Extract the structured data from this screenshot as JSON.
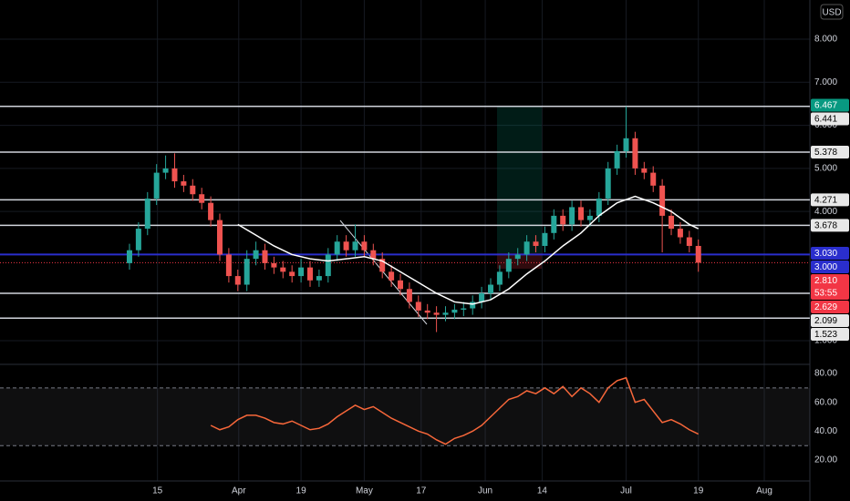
{
  "currency": "USD",
  "chart_data": [
    {
      "type": "candlestick",
      "xlim": [
        -14.34,
        75.35
      ],
      "ylim": [
        0.45,
        8.91
      ],
      "xticks": [
        {
          "value": 3.1,
          "label": "15"
        },
        {
          "value": 12.1,
          "label": "Apr"
        },
        {
          "value": 19,
          "label": "19"
        },
        {
          "value": 26,
          "label": "May"
        },
        {
          "value": 32.3,
          "label": "17"
        },
        {
          "value": 39.4,
          "label": "Jun"
        },
        {
          "value": 45.7,
          "label": "14"
        },
        {
          "value": 55,
          "label": "Jul"
        },
        {
          "value": 63,
          "label": "19"
        },
        {
          "value": 70.3,
          "label": "Aug"
        }
      ],
      "yticks": [
        {
          "value": 1,
          "label": "1.000"
        },
        {
          "value": 4,
          "label": "4.000"
        },
        {
          "value": 5,
          "label": "5.000"
        },
        {
          "value": 6,
          "label": "6.000"
        },
        {
          "value": 7,
          "label": "7.000"
        },
        {
          "value": 8,
          "label": "8.000"
        }
      ],
      "grid": true,
      "up_color": "#26a69a",
      "down_color": "#ef5350",
      "open": [
        2.8,
        3.1,
        3.6,
        4.3,
        4.9,
        5.0,
        4.7,
        4.6,
        4.4,
        4.2,
        3.8,
        3.0,
        2.5,
        2.3,
        2.9,
        3.1,
        2.8,
        2.7,
        2.6,
        2.5,
        2.7,
        2.4,
        2.5,
        3.0,
        3.3,
        3.1,
        3.3,
        3.1,
        2.9,
        2.6,
        2.4,
        2.2,
        1.9,
        1.7,
        1.65,
        1.6,
        1.65,
        1.72,
        1.75,
        1.9,
        2.1,
        2.3,
        2.6,
        2.9,
        3.0,
        3.3,
        3.2,
        3.5,
        3.9,
        3.7,
        4.1,
        3.8,
        3.9,
        4.3,
        5.0,
        5.4,
        5.7,
        5.0,
        4.9,
        4.6,
        3.9,
        3.6,
        3.4,
        3.2
      ],
      "high": [
        3.25,
        3.75,
        4.45,
        5.1,
        5.3,
        5.35,
        4.85,
        4.75,
        4.55,
        4.35,
        3.95,
        3.15,
        2.65,
        3.1,
        3.3,
        3.25,
        2.95,
        2.85,
        2.75,
        2.9,
        2.85,
        2.65,
        3.15,
        3.45,
        3.45,
        3.7,
        3.45,
        3.25,
        3.05,
        2.75,
        2.55,
        2.35,
        2.05,
        1.85,
        1.8,
        1.8,
        1.85,
        1.9,
        2.05,
        2.25,
        2.45,
        2.75,
        3.05,
        3.15,
        3.45,
        3.45,
        3.65,
        4.05,
        4.05,
        4.25,
        4.25,
        4.05,
        4.45,
        5.15,
        5.55,
        6.44,
        5.85,
        5.15,
        5.05,
        4.75,
        4.05,
        3.75,
        3.55,
        3.35
      ],
      "low": [
        2.65,
        2.95,
        3.45,
        4.15,
        4.75,
        4.55,
        4.45,
        4.25,
        4.05,
        3.65,
        2.85,
        2.35,
        2.15,
        2.15,
        2.75,
        2.65,
        2.55,
        2.45,
        2.35,
        2.35,
        2.25,
        2.25,
        2.35,
        2.85,
        2.95,
        2.95,
        2.95,
        2.75,
        2.45,
        2.25,
        2.05,
        1.75,
        1.55,
        1.5,
        1.2,
        1.45,
        1.5,
        1.57,
        1.6,
        1.75,
        1.95,
        2.15,
        2.45,
        2.75,
        2.85,
        3.05,
        3.05,
        3.35,
        3.55,
        3.55,
        3.65,
        3.65,
        3.75,
        4.15,
        4.85,
        5.25,
        4.85,
        4.75,
        4.45,
        3.05,
        3.45,
        3.25,
        3.05,
        2.6
      ],
      "close": [
        3.1,
        3.6,
        4.3,
        4.9,
        5.0,
        4.7,
        4.6,
        4.4,
        4.2,
        3.8,
        3.0,
        2.5,
        2.3,
        2.9,
        3.1,
        2.8,
        2.7,
        2.6,
        2.5,
        2.7,
        2.4,
        2.5,
        3.0,
        3.3,
        3.1,
        3.3,
        3.1,
        2.9,
        2.6,
        2.4,
        2.2,
        1.9,
        1.7,
        1.65,
        1.6,
        1.65,
        1.72,
        1.75,
        1.9,
        2.1,
        2.3,
        2.6,
        2.9,
        3.0,
        3.3,
        3.2,
        3.5,
        3.9,
        3.7,
        4.1,
        3.8,
        3.9,
        4.3,
        5.0,
        5.4,
        5.7,
        5.0,
        4.9,
        4.6,
        3.9,
        3.6,
        3.4,
        3.2,
        2.81
      ],
      "ma": {
        "color": "#ffffff",
        "x": [
          12,
          14,
          16,
          18,
          20,
          22,
          24,
          26,
          28,
          30,
          32,
          34,
          36,
          38,
          40,
          42,
          44,
          46,
          48,
          50,
          52,
          54,
          56,
          58,
          60,
          62,
          63
        ],
        "values": [
          3.7,
          3.45,
          3.2,
          3.0,
          2.9,
          2.85,
          2.9,
          2.95,
          2.85,
          2.6,
          2.35,
          2.1,
          1.9,
          1.85,
          1.95,
          2.2,
          2.55,
          2.85,
          3.2,
          3.5,
          3.9,
          4.2,
          4.35,
          4.2,
          4.0,
          3.7,
          3.6
        ]
      },
      "levels": [
        {
          "value": 6.441,
          "label": "6.441",
          "color": "#d1d4dc"
        },
        {
          "value": 5.378,
          "label": "5.378",
          "color": "#d1d4dc"
        },
        {
          "value": 4.271,
          "label": "4.271",
          "color": "#d1d4dc"
        },
        {
          "value": 3.678,
          "label": "3.678",
          "color": "#d1d4dc"
        },
        {
          "value": 3,
          "label": "3.000",
          "color": "#2a2ecd"
        },
        {
          "value": 2.099,
          "label": "2.099",
          "color": "#d1d4dc"
        },
        {
          "value": 1.523,
          "label": "1.523",
          "color": "#d1d4dc"
        }
      ],
      "markers": [
        {
          "value": 6.467,
          "label": "6.467",
          "color": "#089981"
        },
        {
          "value": 3.03,
          "label": "3.030",
          "color": "#2a2ecd"
        },
        {
          "value": 2.81,
          "label": "2.810",
          "countdown": "53:55",
          "color": "#f23645"
        },
        {
          "value": 2.629,
          "label": "2.629",
          "color": "#f23645"
        }
      ]
    },
    {
      "type": "line",
      "xlim": [
        -14.34,
        75.35
      ],
      "ylim": [
        5.5,
        86.3
      ],
      "yticks": [
        {
          "value": 20,
          "label": "20.00"
        },
        {
          "value": 40,
          "label": "40.00"
        },
        {
          "value": 60,
          "label": "60.00"
        },
        {
          "value": 80,
          "label": "80.00"
        }
      ],
      "band": [
        30,
        70
      ],
      "color": "#f7673a",
      "x": [
        9,
        10,
        11,
        12,
        13,
        14,
        15,
        16,
        17,
        18,
        19,
        20,
        21,
        22,
        23,
        24,
        25,
        26,
        27,
        28,
        29,
        30,
        31,
        32,
        33,
        34,
        35,
        36,
        37,
        38,
        39,
        40,
        41,
        42,
        43,
        44,
        45,
        46,
        47,
        48,
        49,
        50,
        51,
        52,
        53,
        54,
        55,
        56,
        57,
        58,
        59,
        60,
        61,
        62,
        63
      ],
      "values": [
        44,
        41,
        43,
        48,
        51,
        51,
        49,
        46,
        45,
        47,
        44,
        41,
        42,
        45,
        50,
        54,
        58,
        55,
        57,
        53,
        49,
        46,
        43,
        40,
        38,
        34,
        31,
        35,
        37,
        40,
        44,
        50,
        56,
        62,
        64,
        68,
        66,
        70,
        66,
        71,
        64,
        70,
        66,
        60,
        70,
        75,
        77,
        60,
        62,
        54,
        46,
        48,
        45,
        41,
        38
      ]
    }
  ]
}
